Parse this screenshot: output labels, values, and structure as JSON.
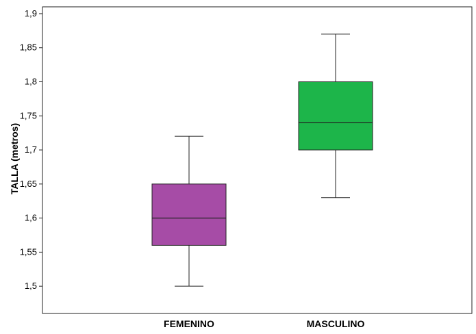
{
  "chart_data": {
    "type": "boxplot",
    "title": "",
    "xlabel": "",
    "ylabel": "TALLA (metros)",
    "ylim": [
      1.46,
      1.91
    ],
    "yticks": [
      1.5,
      1.55,
      1.6,
      1.65,
      1.7,
      1.75,
      1.8,
      1.85,
      1.9
    ],
    "ytick_labels": [
      "1,5",
      "1,55",
      "1,6",
      "1,65",
      "1,7",
      "1,75",
      "1,8",
      "1,85",
      "1,9"
    ],
    "grid": false,
    "legend": "none",
    "categories": [
      "FEMENINO",
      "MASCULINO"
    ],
    "boxes": [
      {
        "category": "FEMENINO",
        "min": 1.5,
        "q1": 1.56,
        "median": 1.6,
        "q3": 1.65,
        "max": 1.72,
        "color": "#a64ca6"
      },
      {
        "category": "MASCULINO",
        "min": 1.63,
        "q1": 1.7,
        "median": 1.74,
        "q3": 1.8,
        "max": 1.87,
        "color": "#1db54a"
      }
    ]
  }
}
